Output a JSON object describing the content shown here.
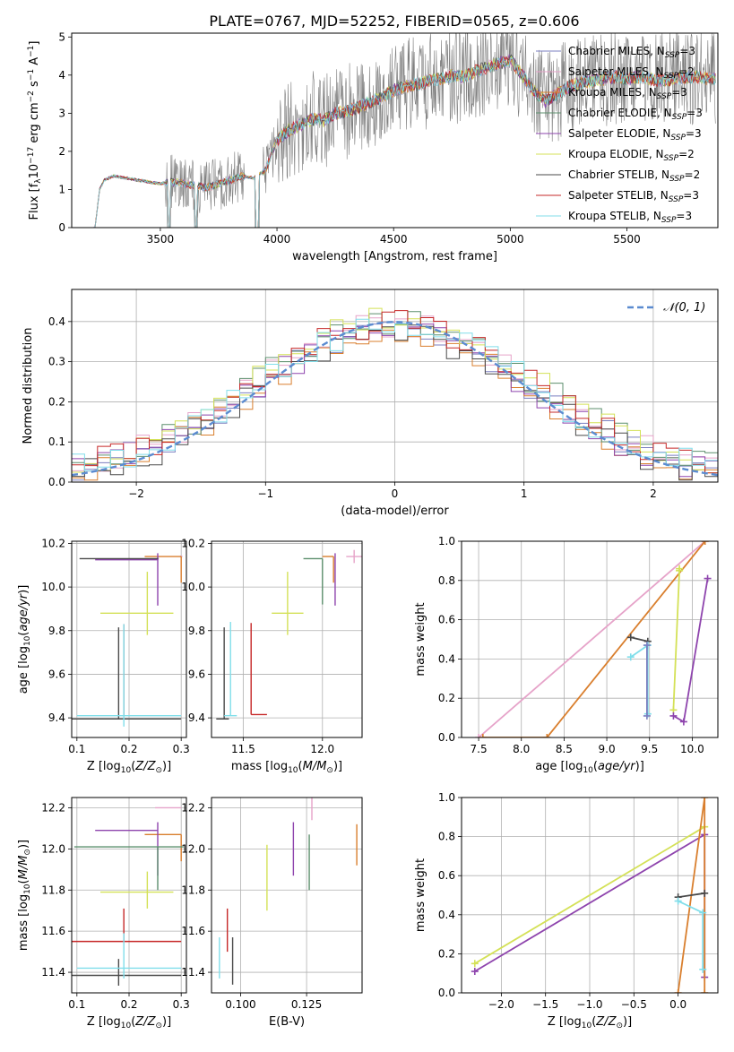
{
  "figure": {
    "title": "PLATE=0767, MJD=52252, FIBERID=0565, z=0.606"
  },
  "models": [
    {
      "name": "Chabrier MILES",
      "nssp": "3",
      "color": "#7b7fc0"
    },
    {
      "name": "Salpeter MILES",
      "nssp": "2",
      "color": "#e6a3c9"
    },
    {
      "name": "Kroupa MILES",
      "nssp": "3",
      "color": "#d97f2e"
    },
    {
      "name": "Chabrier ELODIE",
      "nssp": "3",
      "color": "#5c8f6d"
    },
    {
      "name": "Salpeter ELODIE",
      "nssp": "3",
      "color": "#8e44ad"
    },
    {
      "name": "Kroupa ELODIE",
      "nssp": "2",
      "color": "#d4e157"
    },
    {
      "name": "Chabrier STELIB",
      "nssp": "2",
      "color": "#4a4a4a"
    },
    {
      "name": "Salpeter STELIB",
      "nssp": "3",
      "color": "#c62828"
    },
    {
      "name": "Kroupa STELIB",
      "nssp": "3",
      "color": "#80deea"
    }
  ],
  "chart_data": [
    {
      "type": "line",
      "id": "spectrum",
      "xlabel": "wavelength [Angstrom, rest frame]",
      "ylabel": "Flux [f_λ 10^-17 erg cm^-2 s^-1 A^-1]",
      "xlim": [
        3120,
        5890
      ],
      "ylim": [
        0,
        5.1
      ],
      "xticks": [
        3500,
        4000,
        4500,
        5000,
        5500
      ],
      "yticks": [
        0,
        1,
        2,
        3,
        4,
        5
      ],
      "grid": false,
      "legend": "right",
      "data_color": "#7f7f7f",
      "continuum_x": [
        3220,
        3240,
        3260,
        3300,
        3350,
        3400,
        3450,
        3500,
        3550,
        3600,
        3650,
        3700,
        3750,
        3800,
        3850,
        3900,
        3950,
        4000,
        4050,
        4100,
        4150,
        4200,
        4250,
        4300,
        4350,
        4400,
        4450,
        4500,
        4550,
        4600,
        4650,
        4700,
        4750,
        4800,
        4850,
        4900,
        4950,
        5000,
        5050,
        5100,
        5150,
        5200,
        5250,
        5300,
        5350,
        5400,
        5450,
        5500,
        5550,
        5600,
        5650,
        5700,
        5750,
        5800,
        5850
      ],
      "continuum_y": [
        0,
        1.0,
        1.25,
        1.35,
        1.3,
        1.25,
        1.2,
        1.15,
        1.2,
        1.15,
        1.1,
        1.05,
        1.15,
        1.25,
        1.35,
        1.3,
        1.5,
        2.3,
        2.55,
        2.7,
        2.85,
        2.8,
        3.0,
        3.05,
        3.15,
        3.3,
        3.4,
        3.6,
        3.7,
        3.75,
        3.85,
        3.9,
        4.0,
        3.95,
        4.1,
        4.2,
        4.3,
        4.4,
        4.0,
        3.6,
        3.3,
        3.5,
        3.7,
        3.8,
        3.85,
        3.9,
        3.95,
        3.9,
        3.95,
        3.9,
        3.85,
        3.9,
        3.95,
        3.95,
        3.9
      ]
    },
    {
      "type": "histogram",
      "id": "residuals",
      "xlabel": "(data-model)/error",
      "ylabel": "Normed distribution",
      "xlim": [
        -2.5,
        2.5
      ],
      "ylim": [
        0,
        0.48
      ],
      "xticks": [
        -2,
        -1,
        0,
        1,
        2
      ],
      "yticks": [
        0.0,
        0.1,
        0.2,
        0.3,
        0.4
      ],
      "grid": true,
      "legend": "top-right",
      "legend_label": "𝒩(0, 1)",
      "gauss_color": "#5b8bd0",
      "bin_edges": [
        -2.5,
        -2.4,
        -2.3,
        -2.2,
        -2.1,
        -2.0,
        -1.9,
        -1.8,
        -1.7,
        -1.6,
        -1.5,
        -1.4,
        -1.3,
        -1.2,
        -1.1,
        -1.0,
        -0.9,
        -0.8,
        -0.7,
        -0.6,
        -0.5,
        -0.4,
        -0.3,
        -0.2,
        -0.1,
        0.0,
        0.1,
        0.2,
        0.3,
        0.4,
        0.5,
        0.6,
        0.7,
        0.8,
        0.9,
        1.0,
        1.1,
        1.2,
        1.3,
        1.4,
        1.5,
        1.6,
        1.7,
        1.8,
        1.9,
        2.0,
        2.1,
        2.2,
        2.3,
        2.4,
        2.5
      ],
      "offsets": [
        0.0,
        0.012,
        -0.018,
        0.02,
        -0.01,
        0.025,
        -0.022,
        0.015,
        0.008,
        -0.02
      ]
    },
    {
      "type": "scatter",
      "id": "age-vs-Z",
      "xlabel": "Z [log10(Z/Z⊙)]",
      "ylabel": "age [log10(age/yr)]",
      "xlim": [
        0.09,
        0.31
      ],
      "ylim": [
        9.31,
        10.21
      ],
      "xticks": [
        0.1,
        0.2,
        0.3
      ],
      "yticks": [
        9.4,
        9.6,
        9.8,
        10.0,
        10.2
      ],
      "grid": true,
      "points": [
        {
          "model": 0,
          "x": 0.3,
          "y": 10.14,
          "xerr": [
            0.0,
            0.0
          ],
          "yerr": [
            0.0,
            0.0
          ]
        },
        {
          "model": 1,
          "x": 0.3,
          "y": 10.14,
          "xerr": [
            0.0,
            0.0
          ],
          "yerr": [
            0.0,
            0.0
          ]
        },
        {
          "model": 2,
          "x": 0.3,
          "y": 10.14,
          "xerr": [
            0.07,
            0.0
          ],
          "yerr": [
            0.12,
            0.0
          ]
        },
        {
          "model": 3,
          "x": 0.255,
          "y": 10.13,
          "xerr": [
            0.0,
            0.0
          ],
          "yerr": [
            0.0,
            0.0
          ]
        },
        {
          "model": 4,
          "x": 0.255,
          "y": 10.125,
          "xerr": [
            0.12,
            0.0
          ],
          "yerr": [
            0.21,
            0.03
          ]
        },
        {
          "model": 5,
          "x": 0.235,
          "y": 9.88,
          "xerr": [
            0.09,
            0.05
          ],
          "yerr": [
            0.1,
            0.19
          ]
        },
        {
          "model": 6,
          "x": 0.18,
          "y": 9.395,
          "xerr": [
            0.09,
            0.12
          ],
          "yerr": [
            0.0,
            0.42
          ]
        },
        {
          "model": 6,
          "x": 0.255,
          "y": 10.13,
          "xerr": [
            0.15,
            0.0
          ],
          "yerr": [
            0.0,
            0.0
          ]
        },
        {
          "model": 7,
          "x": 0.19,
          "y": 9.41,
          "xerr": [
            0.0,
            0.0
          ],
          "yerr": [
            0.0,
            0.42
          ]
        },
        {
          "model": 8,
          "x": 0.19,
          "y": 9.41,
          "xerr": [
            0.09,
            0.11
          ],
          "yerr": [
            0.05,
            0.42
          ]
        }
      ]
    },
    {
      "type": "scatter",
      "id": "age-vs-mass",
      "xlabel": "mass [log10(M/M⊙)]",
      "ylabel": "",
      "xlim": [
        11.3,
        12.25
      ],
      "ylim": [
        9.31,
        10.21
      ],
      "xticks": [
        11.5,
        12.0
      ],
      "yticks": [
        9.4,
        9.6,
        9.8,
        10.0,
        10.2
      ],
      "grid": true,
      "points": [
        {
          "model": 1,
          "x": 12.2,
          "y": 10.14,
          "xerr": [
            0.05,
            0.05
          ],
          "yerr": [
            0.03,
            0.03
          ]
        },
        {
          "model": 2,
          "x": 12.07,
          "y": 10.14,
          "xerr": [
            0.07,
            0.0
          ],
          "yerr": [
            0.12,
            0.0
          ]
        },
        {
          "model": 3,
          "x": 12.0,
          "y": 10.13,
          "xerr": [
            0.12,
            0.0
          ],
          "yerr": [
            0.21,
            0.0
          ]
        },
        {
          "model": 4,
          "x": 12.08,
          "y": 10.125,
          "xerr": [
            0.0,
            0.0
          ],
          "yerr": [
            0.21,
            0.03
          ]
        },
        {
          "model": 5,
          "x": 11.78,
          "y": 9.88,
          "xerr": [
            0.1,
            0.1
          ],
          "yerr": [
            0.1,
            0.19
          ]
        },
        {
          "model": 6,
          "x": 11.38,
          "y": 9.395,
          "xerr": [
            0.05,
            0.03
          ],
          "yerr": [
            0.0,
            0.42
          ]
        },
        {
          "model": 7,
          "x": 11.55,
          "y": 9.415,
          "xerr": [
            0.0,
            0.1
          ],
          "yerr": [
            0.0,
            0.42
          ]
        },
        {
          "model": 8,
          "x": 11.42,
          "y": 9.41,
          "xerr": [
            0.04,
            0.04
          ],
          "yerr": [
            0.0,
            0.43
          ]
        }
      ]
    },
    {
      "type": "line",
      "id": "mass-weight-vs-age",
      "xlabel": "age [log10(age/yr)]",
      "ylabel": "mass weight",
      "xlim": [
        7.3,
        10.3
      ],
      "ylim": [
        0,
        1
      ],
      "xticks": [
        7.5,
        8.0,
        8.5,
        9.0,
        9.5,
        10.0
      ],
      "yticks": [
        0.0,
        0.2,
        0.4,
        0.6,
        0.8,
        1.0
      ],
      "grid": true,
      "series": [
        {
          "model": 1,
          "x": [
            7.5,
            10.15
          ],
          "y": [
            0.0,
            1.0
          ]
        },
        {
          "model": 2,
          "x": [
            7.55,
            8.3,
            10.15
          ],
          "y": [
            0.0,
            0.0,
            1.0
          ]
        },
        {
          "model": 5,
          "x": [
            9.78,
            9.85,
            9.85
          ],
          "y": [
            0.14,
            0.85,
            0.86
          ]
        },
        {
          "model": 4,
          "x": [
            9.78,
            9.9,
            10.18
          ],
          "y": [
            0.11,
            0.08,
            0.81
          ]
        },
        {
          "model": 6,
          "x": [
            9.28,
            9.48
          ],
          "y": [
            0.51,
            0.49
          ]
        },
        {
          "model": 8,
          "x": [
            9.28,
            9.48,
            9.48
          ],
          "y": [
            0.41,
            0.47,
            0.12
          ]
        },
        {
          "model": 0,
          "x": [
            9.47,
            9.47
          ],
          "y": [
            0.47,
            0.11
          ]
        }
      ]
    },
    {
      "type": "scatter",
      "id": "mass-vs-Z",
      "xlabel": "Z [log10(Z/Z⊙)]",
      "ylabel": "mass [log10(M/M⊙)]",
      "xlim": [
        0.09,
        0.31
      ],
      "ylim": [
        11.3,
        12.25
      ],
      "xticks": [
        0.1,
        0.2,
        0.3
      ],
      "yticks": [
        11.4,
        11.6,
        11.8,
        12.0,
        12.2
      ],
      "grid": true,
      "points": [
        {
          "model": 1,
          "x": 0.3,
          "y": 12.2,
          "xerr": [
            0.05,
            0.0
          ],
          "yerr": [
            0.0,
            0.0
          ]
        },
        {
          "model": 2,
          "x": 0.3,
          "y": 12.07,
          "xerr": [
            0.07,
            0.0
          ],
          "yerr": [
            0.13,
            0.0
          ]
        },
        {
          "model": 4,
          "x": 0.255,
          "y": 12.09,
          "xerr": [
            0.12,
            0.0
          ],
          "yerr": [
            0.22,
            0.04
          ]
        },
        {
          "model": 3,
          "x": 0.255,
          "y": 12.01,
          "xerr": [
            0.16,
            0.05
          ],
          "yerr": [
            0.21,
            0.0
          ]
        },
        {
          "model": 5,
          "x": 0.235,
          "y": 11.79,
          "xerr": [
            0.09,
            0.05
          ],
          "yerr": [
            0.08,
            0.1
          ]
        },
        {
          "model": 7,
          "x": 0.19,
          "y": 11.55,
          "xerr": [
            0.1,
            0.11
          ],
          "yerr": [
            0.0,
            0.16
          ]
        },
        {
          "model": 6,
          "x": 0.18,
          "y": 11.385,
          "xerr": [
            0.09,
            0.12
          ],
          "yerr": [
            0.05,
            0.08
          ]
        },
        {
          "model": 8,
          "x": 0.19,
          "y": 11.42,
          "xerr": [
            0.09,
            0.11
          ],
          "yerr": [
            0.05,
            0.17
          ]
        }
      ]
    },
    {
      "type": "scatter",
      "id": "mass-vs-ebv",
      "xlabel": "E(B-V)",
      "ylabel": "",
      "xlim": [
        0.089,
        0.146
      ],
      "ylim": [
        11.3,
        12.25
      ],
      "xticks": [
        0.1,
        0.125
      ],
      "xticklabels": [
        "0.100",
        "0.125"
      ],
      "yticks": [
        11.4,
        11.6,
        11.8,
        12.0,
        12.2
      ],
      "grid": true,
      "points": [
        {
          "model": 8,
          "x": 0.092,
          "y": 11.47,
          "xerr": [
            0,
            0
          ],
          "yerr": [
            0.1,
            0.1
          ]
        },
        {
          "model": 7,
          "x": 0.095,
          "y": 11.6,
          "xerr": [
            0,
            0
          ],
          "yerr": [
            0.1,
            0.11
          ]
        },
        {
          "model": 6,
          "x": 0.097,
          "y": 11.45,
          "xerr": [
            0,
            0
          ],
          "yerr": [
            0.11,
            0.12
          ]
        },
        {
          "model": 5,
          "x": 0.11,
          "y": 11.85,
          "xerr": [
            0,
            0
          ],
          "yerr": [
            0.15,
            0.17
          ]
        },
        {
          "model": 4,
          "x": 0.12,
          "y": 12.0,
          "xerr": [
            0,
            0
          ],
          "yerr": [
            0.13,
            0.13
          ]
        },
        {
          "model": 3,
          "x": 0.126,
          "y": 11.94,
          "xerr": [
            0,
            0
          ],
          "yerr": [
            0.14,
            0.13
          ]
        },
        {
          "model": 1,
          "x": 0.127,
          "y": 12.2,
          "xerr": [
            0,
            0
          ],
          "yerr": [
            0.06,
            0.06
          ]
        },
        {
          "model": 2,
          "x": 0.144,
          "y": 12.02,
          "xerr": [
            0,
            0
          ],
          "yerr": [
            0.1,
            0.1
          ]
        }
      ]
    },
    {
      "type": "line",
      "id": "mass-weight-vs-Z",
      "xlabel": "Z [log10(Z/Z⊙)]",
      "ylabel": "mass weight",
      "xlim": [
        -2.45,
        0.45
      ],
      "ylim": [
        0,
        1
      ],
      "xticks": [
        -2.0,
        -1.5,
        -1.0,
        -0.5,
        0.0
      ],
      "yticks": [
        0.0,
        0.2,
        0.4,
        0.6,
        0.8,
        1.0
      ],
      "grid": true,
      "series": [
        {
          "model": 5,
          "x": [
            -2.3,
            0.3
          ],
          "y": [
            0.15,
            0.85
          ]
        },
        {
          "model": 4,
          "x": [
            -2.3,
            0.3,
            0.3
          ],
          "y": [
            0.11,
            0.81,
            0.08
          ]
        },
        {
          "model": 2,
          "x": [
            0.0,
            0.3,
            0.3
          ],
          "y": [
            0.0,
            1.0,
            0.0
          ]
        },
        {
          "model": 6,
          "x": [
            0.0,
            0.3
          ],
          "y": [
            0.49,
            0.51
          ]
        },
        {
          "model": 8,
          "x": [
            0.0,
            0.28,
            0.28
          ],
          "y": [
            0.47,
            0.41,
            0.12
          ]
        }
      ]
    }
  ]
}
